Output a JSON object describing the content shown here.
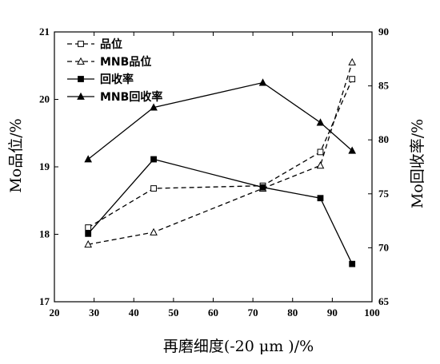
{
  "chart_data": {
    "type": "line",
    "xlabel": "再磨细度(-20 μm )/%",
    "ylabel_left": "Mo品位/%",
    "ylabel_right": "Mo回收率/%",
    "xlim": [
      20,
      100
    ],
    "ylim_left": [
      17,
      21
    ],
    "ylim_right": [
      65,
      90
    ],
    "x_ticks": [
      20,
      30,
      40,
      50,
      60,
      70,
      80,
      90,
      100
    ],
    "y_left_ticks": [
      17,
      18,
      19,
      20,
      21
    ],
    "y_right_ticks": [
      65,
      70,
      75,
      80,
      85,
      90
    ],
    "legend_position": "top-left",
    "series": [
      {
        "name": "品位",
        "axis": "left",
        "line_style": "dashed",
        "marker": "open-square",
        "x": [
          28.5,
          45,
          72.5,
          87,
          95
        ],
        "y": [
          18.1,
          18.68,
          18.72,
          19.22,
          20.3
        ]
      },
      {
        "name": "MNB品位",
        "axis": "left",
        "line_style": "dashed",
        "marker": "open-triangle",
        "x": [
          28.5,
          45,
          72.5,
          87,
          95
        ],
        "y": [
          17.85,
          18.03,
          18.68,
          19.02,
          20.55
        ]
      },
      {
        "name": "回收率",
        "axis": "right",
        "line_style": "solid",
        "marker": "filled-square",
        "x": [
          28.5,
          45,
          72.5,
          87,
          95
        ],
        "y": [
          71.3,
          78.2,
          75.6,
          74.6,
          68.5
        ]
      },
      {
        "name": "MNB回收率",
        "axis": "right",
        "line_style": "solid",
        "marker": "filled-triangle",
        "x": [
          28.5,
          45,
          72.5,
          87,
          95
        ],
        "y": [
          78.2,
          83.0,
          85.3,
          81.6,
          79.0
        ]
      }
    ]
  }
}
